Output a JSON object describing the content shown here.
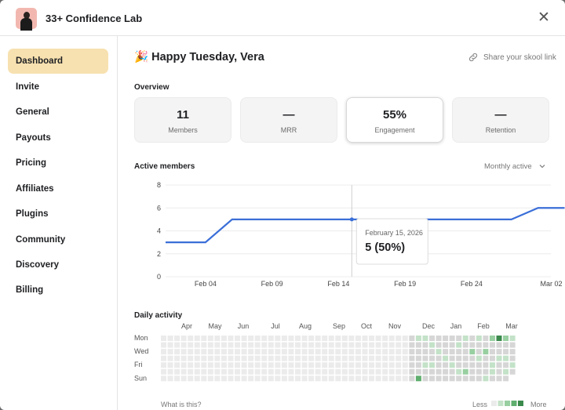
{
  "header": {
    "title": "33+ Confidence Lab",
    "close_glyph": "✕"
  },
  "sidebar": {
    "items": [
      {
        "label": "Dashboard",
        "active": true
      },
      {
        "label": "Invite"
      },
      {
        "label": "General"
      },
      {
        "label": "Payouts"
      },
      {
        "label": "Pricing"
      },
      {
        "label": "Affiliates"
      },
      {
        "label": "Plugins"
      },
      {
        "label": "Community"
      },
      {
        "label": "Discovery"
      },
      {
        "label": "Billing"
      }
    ]
  },
  "main": {
    "greeting_emoji": "🎉",
    "greeting": "Happy Tuesday, Vera",
    "share_label": "Share your skool link",
    "overview_label": "Overview",
    "cards": [
      {
        "value": "11",
        "label": "Members"
      },
      {
        "value": "—",
        "label": "MRR"
      },
      {
        "value": "55%",
        "label": "Engagement",
        "active": true
      },
      {
        "value": "—",
        "label": "Retention"
      }
    ],
    "active_members_label": "Active members",
    "range_select": "Monthly active",
    "tooltip": {
      "date": "February 15, 2026",
      "value": "5 (50%)"
    },
    "daily_activity_label": "Daily activity",
    "what_is_this": "What is this?",
    "legend_less": "Less",
    "legend_more": "More",
    "heatmap": {
      "months": [
        "Apr",
        "May",
        "Jun",
        "Jul",
        "Aug",
        "Sep",
        "Oct",
        "Nov",
        "Dec",
        "Jan",
        "Feb",
        "Mar"
      ],
      "day_labels": [
        "Mon",
        "",
        "Wed",
        "",
        "Fri",
        "",
        "Sun"
      ],
      "colors": [
        "#ebebeb",
        "#d6d6d6",
        "#c3e2c8",
        "#98cfa1",
        "#5fae6e",
        "#3b8a4c"
      ]
    }
  },
  "chart_data": {
    "type": "line",
    "title": "Active members",
    "x_ticks": [
      "Feb 04",
      "Feb 09",
      "Feb 14",
      "Feb 19",
      "Feb 24",
      "Mar 02"
    ],
    "ylim": [
      0,
      8
    ],
    "y_ticks": [
      0,
      2,
      4,
      6,
      8
    ],
    "series": [
      {
        "values": [
          {
            "x": "Feb 01",
            "y": 3
          },
          {
            "x": "Feb 04",
            "y": 3
          },
          {
            "x": "Feb 06",
            "y": 5
          },
          {
            "x": "Feb 15",
            "y": 5
          },
          {
            "x": "Feb 27",
            "y": 5
          },
          {
            "x": "Mar 01",
            "y": 6
          },
          {
            "x": "Mar 03",
            "y": 6
          }
        ]
      }
    ],
    "grid": true,
    "color": "#3b6fd8"
  }
}
